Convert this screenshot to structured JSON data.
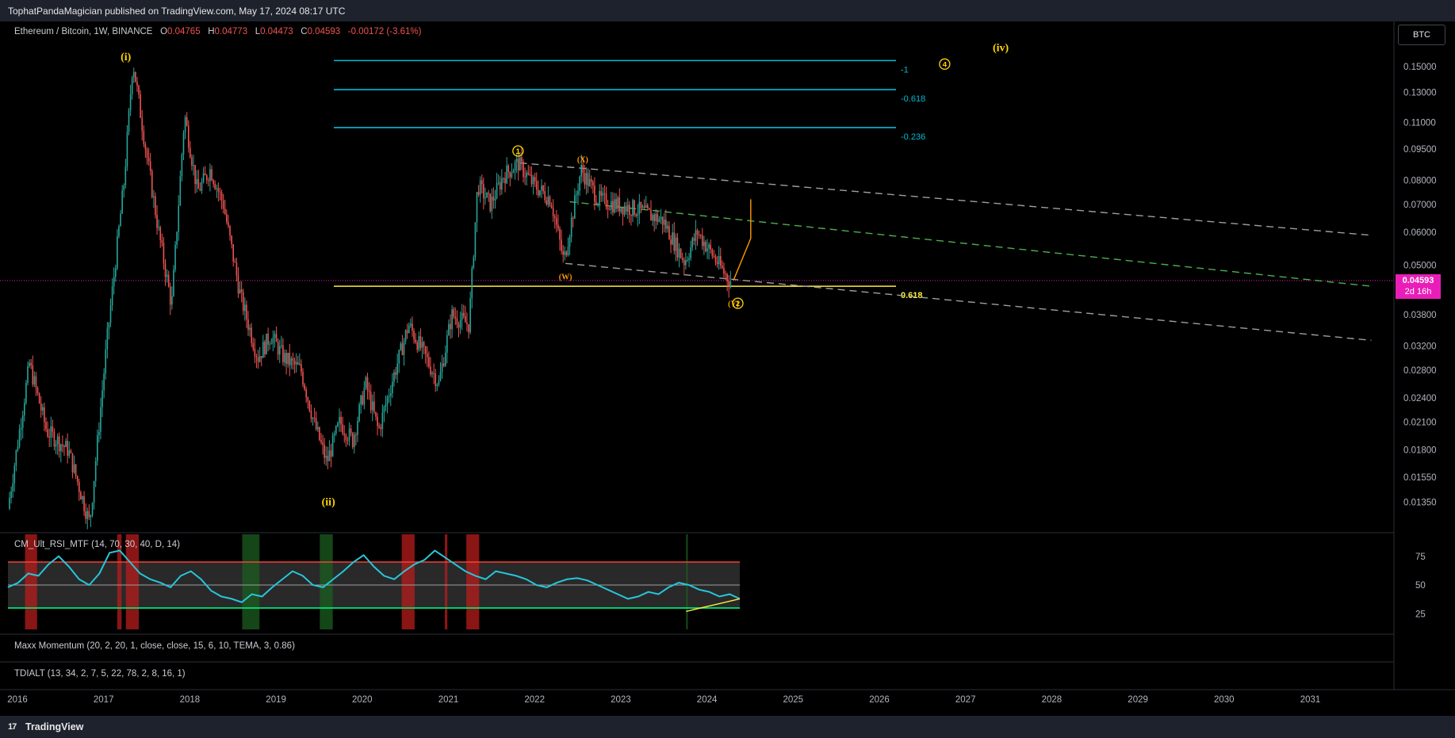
{
  "header": {
    "publish_line": "TophatPandaMagician published on TradingView.com, May 17, 2024 08:17 UTC"
  },
  "legend": {
    "symbol": "Ethereum / Bitcoin, 1W, BINANCE",
    "open_label": "O",
    "open": "0.04765",
    "high_label": "H",
    "high": "0.04773",
    "low_label": "L",
    "low": "0.04473",
    "close_label": "C",
    "close": "0.04593",
    "change": "-0.00172 (-3.61%)"
  },
  "currency_button": "BTC",
  "last_price": {
    "value": "0.04593",
    "countdown": "2d 16h"
  },
  "indicators": {
    "rsi": "CM_Ult_RSI_MTF (14, 70, 30, 40, D, 14)",
    "maxx": "Maxx Momentum (20, 2, 20, 1, close, close, 15, 6, 10, TEMA, 3, 0.86)",
    "tdi": "TDIALT (13, 34, 2, 7, 5, 22, 78, 2, 8, 16, 1)"
  },
  "footer": {
    "brand": "TradingView",
    "logo": "17"
  },
  "colors": {
    "up": "#26a69a",
    "down": "#ef5350",
    "fib": "#00bcd4",
    "fib618": "#ffeb3b",
    "wave": "#ffd600",
    "orange": "#ff9800",
    "price_tag": "#e91eb8",
    "rsi_line": "#26c6da",
    "rsi_upper": "#f44336",
    "rsi_lower": "#00e676"
  },
  "chart_data": {
    "type": "candlestick",
    "symbol": "ETHBTC",
    "timeframe": "1W",
    "y_scale": "log",
    "y_ticks": [
      "0.15000",
      "0.13000",
      "0.11000",
      "0.09500",
      "0.08000",
      "0.07000",
      "0.06000",
      "0.05000",
      "0.03800",
      "0.03200",
      "0.02800",
      "0.02400",
      "0.02100",
      "0.01800",
      "0.01550",
      "0.01350"
    ],
    "x_ticks": [
      "2016",
      "2017",
      "2018",
      "2019",
      "2020",
      "2021",
      "2022",
      "2023",
      "2024",
      "2025",
      "2026",
      "2027",
      "2028",
      "2029",
      "2030",
      "2031"
    ],
    "price_path": [
      [
        2016.0,
        0.013
      ],
      [
        2016.25,
        0.029
      ],
      [
        2016.45,
        0.02
      ],
      [
        2016.7,
        0.018
      ],
      [
        2016.95,
        0.012
      ],
      [
        2017.15,
        0.033
      ],
      [
        2017.35,
        0.08
      ],
      [
        2017.45,
        0.155
      ],
      [
        2017.6,
        0.095
      ],
      [
        2017.75,
        0.06
      ],
      [
        2017.9,
        0.04
      ],
      [
        2018.05,
        0.115
      ],
      [
        2018.2,
        0.075
      ],
      [
        2018.35,
        0.085
      ],
      [
        2018.5,
        0.07
      ],
      [
        2018.7,
        0.042
      ],
      [
        2018.9,
        0.03
      ],
      [
        2019.05,
        0.034
      ],
      [
        2019.2,
        0.03
      ],
      [
        2019.4,
        0.028
      ],
      [
        2019.55,
        0.021
      ],
      [
        2019.7,
        0.0168
      ],
      [
        2019.85,
        0.021
      ],
      [
        2020.0,
        0.019
      ],
      [
        2020.15,
        0.026
      ],
      [
        2020.3,
        0.02
      ],
      [
        2020.45,
        0.026
      ],
      [
        2020.65,
        0.036
      ],
      [
        2020.85,
        0.03
      ],
      [
        2021.0,
        0.026
      ],
      [
        2021.15,
        0.038
      ],
      [
        2021.35,
        0.036
      ],
      [
        2021.45,
        0.078
      ],
      [
        2021.6,
        0.07
      ],
      [
        2021.75,
        0.082
      ],
      [
        2021.92,
        0.088
      ],
      [
        2022.1,
        0.078
      ],
      [
        2022.3,
        0.072
      ],
      [
        2022.45,
        0.051
      ],
      [
        2022.65,
        0.085
      ],
      [
        2022.85,
        0.072
      ],
      [
        2023.05,
        0.07
      ],
      [
        2023.3,
        0.068
      ],
      [
        2023.6,
        0.064
      ],
      [
        2023.85,
        0.051
      ],
      [
        2024.0,
        0.06
      ],
      [
        2024.2,
        0.052
      ],
      [
        2024.37,
        0.04593
      ]
    ],
    "fib_levels": [
      {
        "label": "-1",
        "price": 0.155,
        "color": "#00bcd4"
      },
      {
        "label": "-0.618",
        "price": 0.132,
        "color": "#00bcd4"
      },
      {
        "label": "-0.236",
        "price": 0.107,
        "color": "#00bcd4"
      },
      {
        "label": "0.618",
        "price": 0.0445,
        "color": "#ffeb3b"
      }
    ],
    "wave_labels": [
      {
        "text": "(i)",
        "x": 2017.35,
        "price": 0.158,
        "color": "#ffd600"
      },
      {
        "text": "(ii)",
        "x": 2019.7,
        "price": 0.0135,
        "color": "#ffd600"
      },
      {
        "text": "1",
        "x": 2021.9,
        "price": 0.094,
        "color": "#ffd600",
        "circled": true
      },
      {
        "text": "(X)",
        "x": 2022.65,
        "price": 0.09,
        "color": "#ff9800"
      },
      {
        "text": "(W)",
        "x": 2022.45,
        "price": 0.047,
        "color": "#ff9800"
      },
      {
        "text": "(Y)",
        "x": 2024.4,
        "price": 0.0405,
        "color": "#ff9800"
      },
      {
        "text": "2",
        "x": 2024.45,
        "price": 0.0405,
        "color": "#ffd600",
        "circled": true
      },
      {
        "text": "4",
        "x": 2026.85,
        "price": 0.152,
        "color": "#ffd600",
        "circled": true
      },
      {
        "text": "(iv)",
        "x": 2027.5,
        "price": 0.166,
        "color": "#ffd600"
      }
    ],
    "channel_lines": [
      {
        "style": "dashed",
        "color": "#9e9e9e",
        "from": [
          2021.92,
          0.088
        ],
        "to": [
          2031.8,
          0.059
        ]
      },
      {
        "style": "dashed",
        "color": "#4caf50",
        "from": [
          2022.5,
          0.071
        ],
        "to": [
          2031.8,
          0.0445
        ]
      },
      {
        "style": "dashed",
        "color": "#9e9e9e",
        "from": [
          2022.45,
          0.0505
        ],
        "to": [
          2031.8,
          0.033
        ]
      }
    ],
    "projection": {
      "color": "#ff9800",
      "points": [
        [
          2024.4,
          0.046
        ],
        [
          2024.6,
          0.058
        ],
        [
          2024.6,
          0.072
        ]
      ]
    },
    "rsi": {
      "upper": 70,
      "lower": 30,
      "mid": 50,
      "y_ticks": [
        "75",
        "50",
        "25"
      ],
      "values": [
        48,
        52,
        60,
        58,
        68,
        75,
        66,
        55,
        50,
        60,
        78,
        80,
        70,
        60,
        55,
        52,
        48,
        58,
        62,
        55,
        45,
        40,
        38,
        35,
        42,
        40,
        48,
        55,
        62,
        58,
        50,
        48,
        55,
        62,
        70,
        76,
        66,
        58,
        55,
        62,
        68,
        72,
        80,
        74,
        68,
        62,
        58,
        55,
        62,
        60,
        58,
        55,
        50,
        48,
        52,
        55,
        56,
        54,
        50,
        46,
        42,
        38,
        40,
        44,
        42,
        48,
        52,
        50,
        46,
        44,
        40,
        42,
        38
      ]
    }
  }
}
